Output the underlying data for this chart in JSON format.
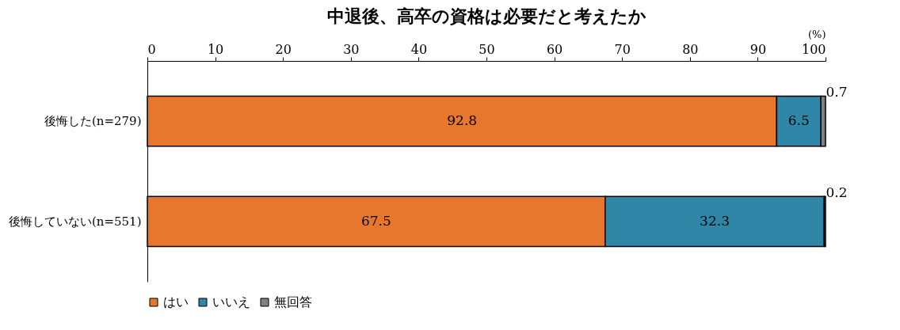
{
  "chart_data": {
    "type": "bar",
    "orientation": "horizontal",
    "stacked": true,
    "title": "中退後、高卒の資格は必要だと考えたか",
    "xlabel": "(%)",
    "categories": [
      "後悔した(n=279)",
      "後悔していない(n=551)"
    ],
    "series": [
      {
        "name": "はい",
        "color": "#e8772e",
        "values": [
          92.8,
          67.5
        ]
      },
      {
        "name": "いいえ",
        "color": "#2f86a6",
        "values": [
          6.5,
          32.3
        ]
      },
      {
        "name": "無回答",
        "color": "#808080",
        "values": [
          0.7,
          0.2
        ]
      }
    ],
    "xlim": [
      0,
      100
    ],
    "xticks": [
      0,
      10,
      20,
      30,
      40,
      50,
      60,
      70,
      80,
      90,
      100
    ],
    "grid": false,
    "legend": "bottom",
    "data_labels": true
  }
}
